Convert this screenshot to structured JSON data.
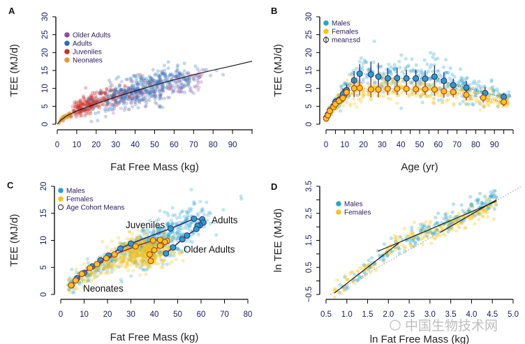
{
  "watermark": "中国生物技术网",
  "chart_data": [
    {
      "panel": "A",
      "type": "scatter",
      "xlabel": "Fat Free Mass (kg)",
      "ylabel": "TEE (MJ/d)",
      "xlim": [
        0,
        100
      ],
      "ylim": [
        0,
        30
      ],
      "xticks": [
        "0",
        "10",
        "20",
        "30",
        "40",
        "50",
        "60",
        "70",
        "80",
        "90"
      ],
      "yticks": [
        "0",
        "5",
        "10",
        "15",
        "20",
        "25",
        "30"
      ],
      "grid": false,
      "legend": {
        "position": "top-left",
        "entries": [
          {
            "name": "Older Adults",
            "color": "#8e4f9a"
          },
          {
            "name": "Adults",
            "color": "#2f6db5"
          },
          {
            "name": "Juveniles",
            "color": "#c8322a"
          },
          {
            "name": "Neonates",
            "color": "#e49a3a"
          }
        ]
      },
      "fit_line": {
        "x": [
          0,
          2,
          5,
          10,
          20,
          30,
          40,
          50,
          60,
          70,
          80,
          90,
          100
        ],
        "y": [
          0,
          1.2,
          2.4,
          3.7,
          5.7,
          7.6,
          9.3,
          10.9,
          12.4,
          13.8,
          15.1,
          16.3,
          17.6
        ]
      }
    },
    {
      "panel": "B",
      "type": "scatter",
      "xlabel": "Age (yr)",
      "ylabel": "TEE (MJ/d)",
      "xlim": [
        0,
        100
      ],
      "ylim": [
        0,
        30
      ],
      "xticks": [
        "0",
        "10",
        "20",
        "30",
        "40",
        "50",
        "60",
        "70",
        "80",
        "90"
      ],
      "yticks": [
        "0",
        "5",
        "10",
        "15",
        "20",
        "25",
        "30"
      ],
      "grid": false,
      "legend": {
        "position": "top-left",
        "entries": [
          {
            "name": "Males",
            "color": "#2ba3c9"
          },
          {
            "name": "Females",
            "color": "#f5c518"
          },
          {
            "name": "mean±sd",
            "color": "#ffffff"
          }
        ]
      },
      "series": [
        {
          "name": "Males",
          "color": "#2e9cc8",
          "age": [
            0.1,
            1,
            2,
            4,
            5,
            7,
            9,
            11,
            15,
            18,
            24,
            28,
            33,
            38,
            43,
            48,
            53,
            58,
            63,
            68,
            75,
            85,
            95
          ],
          "mean": [
            1.8,
            2.7,
            3.8,
            5.0,
            6.2,
            6.8,
            8.4,
            9.5,
            12.2,
            14.1,
            13.9,
            13.3,
            12.8,
            12.9,
            12.8,
            12.8,
            12.7,
            13.3,
            12.1,
            10.9,
            10.2,
            8.7,
            7.6
          ],
          "sd": [
            0.4,
            0.5,
            0.6,
            0.8,
            1.0,
            1.1,
            1.5,
            1.6,
            2.6,
            2.7,
            3.6,
            3.8,
            2.8,
            2.9,
            2.4,
            2.5,
            2.3,
            3.1,
            2.4,
            1.8,
            1.9,
            1.6,
            1.0
          ]
        },
        {
          "name": "Females",
          "color": "#f5c518",
          "age": [
            0.1,
            1,
            2,
            4,
            5,
            7,
            9,
            11,
            15,
            18,
            24,
            28,
            33,
            38,
            43,
            48,
            53,
            58,
            63,
            68,
            75,
            84,
            95
          ],
          "mean": [
            1.6,
            2.5,
            3.7,
            4.8,
            5.6,
            6.5,
            7.3,
            8.9,
            10.0,
            10.1,
            9.7,
            9.7,
            9.9,
            9.9,
            9.9,
            9.8,
            9.8,
            9.7,
            9.2,
            9.0,
            8.2,
            7.4,
            6.2
          ],
          "sd": [
            0.4,
            0.5,
            0.6,
            0.7,
            0.9,
            1.0,
            1.2,
            1.5,
            2.5,
            2.0,
            2.2,
            2.1,
            1.8,
            1.7,
            1.7,
            1.5,
            1.6,
            1.8,
            1.8,
            1.5,
            1.5,
            1.4,
            1.2
          ]
        }
      ]
    },
    {
      "panel": "C",
      "type": "scatter",
      "xlabel": "Fat Free Mass (kg)",
      "ylabel": "TEE (MJ/d)",
      "xlim": [
        0,
        80
      ],
      "ylim": [
        0,
        20
      ],
      "xticks": [
        "0",
        "10",
        "20",
        "30",
        "40",
        "50",
        "60",
        "70",
        "80"
      ],
      "yticks": [
        "0",
        "5",
        "10",
        "15",
        "20"
      ],
      "grid": false,
      "legend": {
        "position": "top-left",
        "entries": [
          {
            "name": "Males",
            "color": "#2ba3c9"
          },
          {
            "name": "Females",
            "color": "#f5c518"
          },
          {
            "name": "Age Cohort Means",
            "color": "#ffffff"
          }
        ]
      },
      "annotations": [
        "Juveniles",
        "Adults",
        "Older Adults",
        "Neonates"
      ],
      "series": [
        {
          "name": "Males",
          "color": "#2e9cc8",
          "line_color": "#2b2f7a",
          "ffm": [
            4.6,
            7,
            10,
            13.5,
            17,
            20.5,
            25.5,
            30,
            47,
            57,
            60.5,
            61,
            59.5,
            58.5,
            58,
            54,
            52,
            48,
            45
          ],
          "tee": [
            1.7,
            3.0,
            4.0,
            5.2,
            6.3,
            7.2,
            8.5,
            9.4,
            12.2,
            14.0,
            13.9,
            13.3,
            12.8,
            12.7,
            12.1,
            10.9,
            10.2,
            8.7,
            7.6
          ]
        },
        {
          "name": "Females",
          "color": "#f5c518",
          "line_color": "#a8302a",
          "ffm": [
            4.5,
            6.4,
            9,
            12.5,
            15.5,
            19.5,
            23,
            32,
            39.5,
            42.5,
            45.5,
            44.5,
            43,
            42.5,
            40,
            38,
            38.5
          ],
          "tee": [
            1.7,
            2.6,
            3.8,
            4.9,
            5.6,
            6.7,
            7.4,
            8.9,
            10.0,
            10.1,
            9.9,
            9.7,
            9.1,
            9.0,
            8.2,
            7.4,
            6.2
          ]
        }
      ]
    },
    {
      "panel": "D",
      "type": "scatter",
      "xlabel": "ln Fat Free Mass (kg)",
      "ylabel": "ln TEE (MJ/d)",
      "xlim": [
        0.5,
        5.0
      ],
      "ylim": [
        -0.5,
        3.5
      ],
      "xticks": [
        "0.5",
        "1.0",
        "1.5",
        "2.0",
        "2.5",
        "3.0",
        "3.5",
        "4.0",
        "4.5",
        "5.0"
      ],
      "yticks": [
        "−0.5",
        "0.5",
        "1.5",
        "2.5",
        "3.5"
      ],
      "grid": false,
      "legend": {
        "position": "top-left",
        "entries": [
          {
            "name": "Males",
            "color": "#2ba3c9"
          },
          {
            "name": "Females",
            "color": "#f5c518"
          }
        ]
      },
      "fit_lines": [
        {
          "x": [
            0.7,
            2.25
          ],
          "y": [
            -0.45,
            1.4
          ]
        },
        {
          "x": [
            1.75,
            2.25,
            4.6
          ],
          "y": [
            1.1,
            1.42,
            2.95
          ]
        },
        {
          "x": [
            3.25,
            4.6
          ],
          "y": [
            1.8,
            3.0
          ]
        }
      ],
      "reference_line": {
        "x": [
          0.6,
          5.2
        ],
        "y": [
          -0.5,
          3.5
        ],
        "style": "dotted"
      }
    }
  ]
}
